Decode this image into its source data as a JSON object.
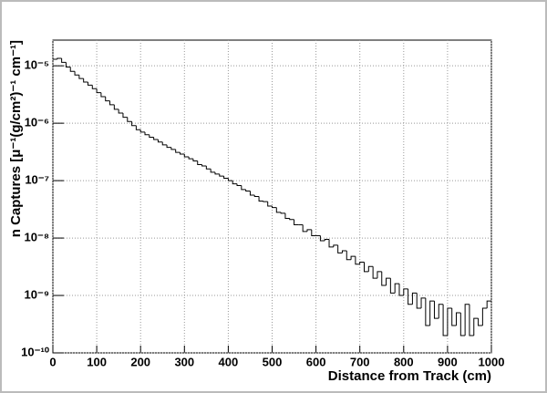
{
  "chart_data": {
    "type": "histogram",
    "x_label": "Distance from Track (cm)",
    "y_label": "n Captures [μ⁻¹(g/cm²)⁻¹ cm⁻¹]",
    "log_y": true,
    "grid": true,
    "color": "#000000",
    "xlim": [
      0,
      1000
    ],
    "xticks": [
      0,
      100,
      200,
      300,
      400,
      500,
      600,
      700,
      800,
      900,
      1000
    ],
    "ylim": [
      1e-10,
      2.8e-05
    ],
    "yticks": [
      {
        "value": 1e-10,
        "label": "10⁻¹⁰"
      },
      {
        "value": 1e-09,
        "label": "10⁻⁹"
      },
      {
        "value": 1e-08,
        "label": "10⁻⁸"
      },
      {
        "value": 1e-07,
        "label": "10⁻⁷"
      },
      {
        "value": 1e-06,
        "label": "10⁻⁶"
      },
      {
        "value": 1e-05,
        "label": "10⁻⁵"
      }
    ],
    "bins": [
      0,
      10,
      20,
      30,
      40,
      50,
      60,
      70,
      80,
      90,
      100,
      110,
      120,
      130,
      140,
      150,
      160,
      170,
      180,
      190,
      200,
      210,
      220,
      230,
      240,
      250,
      260,
      270,
      280,
      290,
      300,
      310,
      320,
      330,
      340,
      350,
      360,
      370,
      380,
      390,
      400,
      410,
      420,
      430,
      440,
      450,
      460,
      470,
      480,
      490,
      500,
      510,
      520,
      530,
      540,
      550,
      560,
      570,
      580,
      590,
      600,
      610,
      620,
      630,
      640,
      650,
      660,
      670,
      680,
      690,
      700,
      710,
      720,
      730,
      740,
      750,
      760,
      770,
      780,
      790,
      800,
      810,
      820,
      830,
      840,
      850,
      860,
      870,
      880,
      890,
      900,
      910,
      920,
      930,
      940,
      950,
      960,
      970,
      980,
      990,
      1000
    ],
    "values": [
      1.3e-05,
      1.35e-05,
      1.15e-05,
      9.5e-06,
      8e-06,
      6.9e-06,
      6e-06,
      5.2e-06,
      4.6e-06,
      4e-06,
      3.4e-06,
      2.9e-06,
      2.45e-06,
      2.1e-06,
      1.75e-06,
      1.5e-06,
      1.27e-06,
      1.07e-06,
      9.1e-07,
      7.7e-07,
      7e-07,
      6.3e-07,
      5.7e-07,
      5.2e-07,
      4.7e-07,
      4.2e-07,
      3.8e-07,
      3.5e-07,
      3.1e-07,
      2.9e-07,
      2.6e-07,
      2.4e-07,
      2.2e-07,
      1.9e-07,
      1.8e-07,
      1.6e-07,
      1.4e-07,
      1.3e-07,
      1.2e-07,
      1.1e-07,
      1e-07,
      8.8e-08,
      8.2e-08,
      7e-08,
      6.6e-08,
      5.6e-08,
      5.3e-08,
      4.4e-08,
      4.3e-08,
      3.6e-08,
      3.4e-08,
      2.8e-08,
      2.7e-08,
      2.2e-08,
      2.1e-08,
      1.7e-08,
      1.7e-08,
      1.3e-08,
      1.4e-08,
      1.1e-08,
      1.1e-08,
      9e-09,
      9.5e-09,
      7e-09,
      7.5e-09,
      5.5e-09,
      6e-09,
      4.2e-09,
      4.8e-09,
      3.5e-09,
      3.8e-09,
      2.6e-09,
      3.2e-09,
      2e-09,
      2.6e-09,
      1.5e-09,
      2e-09,
      1.1e-09,
      1.6e-09,
      1e-09,
      1.3e-09,
      7e-10,
      1.1e-09,
      6e-10,
      9e-10,
      3e-10,
      8e-10,
      4e-10,
      7e-10,
      2e-10,
      6e-10,
      3e-10,
      5e-10,
      2e-10,
      7e-10,
      2e-10,
      4e-10,
      3e-10,
      6e-10,
      8e-10
    ]
  }
}
